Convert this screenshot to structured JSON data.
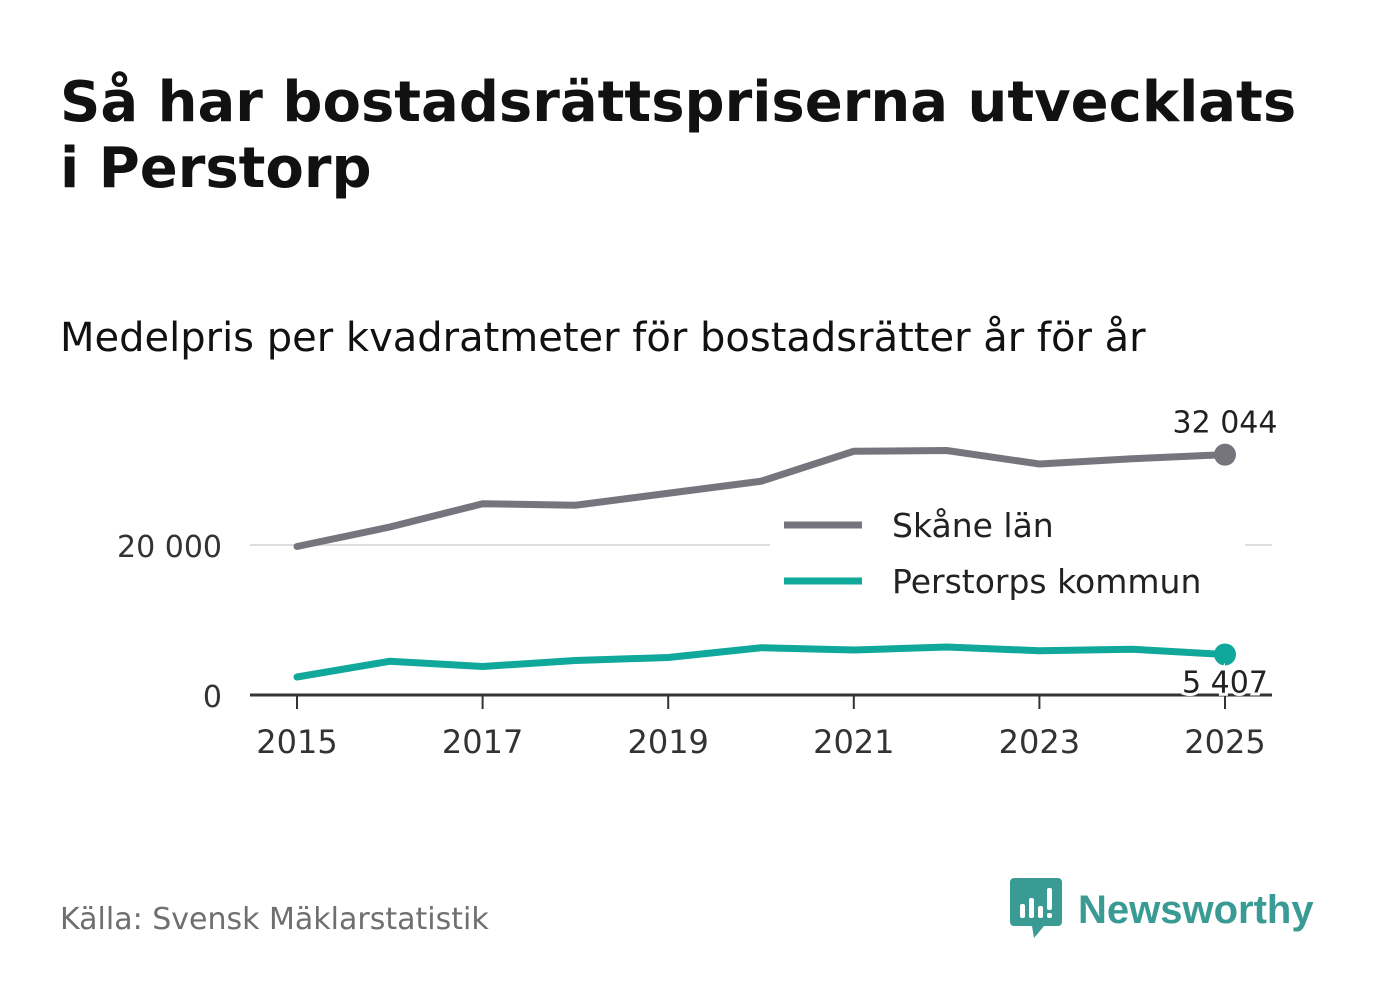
{
  "header": {
    "title": "Så har bostadsrättspriserna utvecklats i Perstorp",
    "subtitle": "Medelpris per kvadratmeter för bostadsrätter år för år"
  },
  "footer": {
    "source": "Källa: Svensk Mäklarstatistik",
    "brand": "Newsworthy",
    "brand_icon": "newsworthy-logo-icon"
  },
  "colors": {
    "skane": "#76757d",
    "perstorp": "#0fa89b",
    "gridline": "#dedede",
    "axis": "#333333",
    "brand": "#3a9b94"
  },
  "chart_data": {
    "type": "line",
    "title": "Så har bostadsrättspriserna utvecklats i Perstorp",
    "subtitle": "Medelpris per kvadratmeter för bostadsrätter år för år",
    "xlabel": "",
    "ylabel": "",
    "x": [
      2015,
      2016,
      2017,
      2018,
      2019,
      2020,
      2021,
      2022,
      2023,
      2024,
      2025
    ],
    "xticks": [
      "2015",
      "2017",
      "2019",
      "2021",
      "2023",
      "2025"
    ],
    "xlim": [
      2015,
      2025
    ],
    "ylim": [
      0,
      34000
    ],
    "yticks": [
      {
        "value": 0,
        "label": "0"
      },
      {
        "value": 20000,
        "label": "20 000"
      }
    ],
    "grid": true,
    "legend_position": "right",
    "series": [
      {
        "name": "Skåne län",
        "key": "skane",
        "values": [
          19800,
          22400,
          25500,
          25300,
          26900,
          28500,
          32500,
          32600,
          30800,
          31500,
          32044
        ],
        "end_label": "32 044",
        "end_label_position": "above"
      },
      {
        "name": "Perstorps kommun",
        "key": "perstorp",
        "values": [
          2400,
          4500,
          3800,
          4600,
          5000,
          6300,
          6000,
          6400,
          5900,
          6100,
          5407
        ],
        "end_label": "5 407",
        "end_label_position": "below"
      }
    ]
  }
}
